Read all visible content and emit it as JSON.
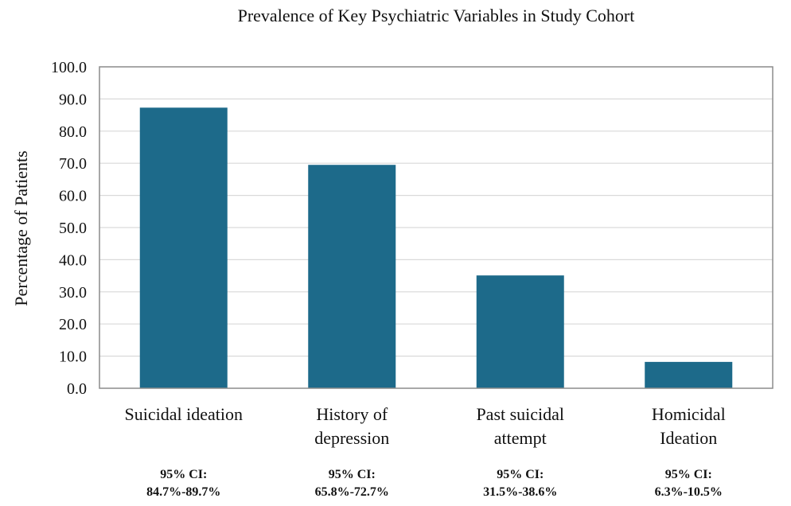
{
  "chart_data": {
    "type": "bar",
    "title": "Prevalence of Key Psychiatric Variables in Study Cohort",
    "xlabel": "",
    "ylabel": "Percentage of Patients",
    "ylim": [
      0,
      100
    ],
    "yticks": [
      "0.0",
      "10.0",
      "20.0",
      "30.0",
      "40.0",
      "50.0",
      "60.0",
      "70.0",
      "80.0",
      "90.0",
      "100.0"
    ],
    "grid": true,
    "categories": [
      [
        "Suicidal ideation"
      ],
      [
        "History of",
        "depression"
      ],
      [
        "Past suicidal",
        "attempt"
      ],
      [
        "Homicidal",
        "Ideation"
      ]
    ],
    "values": [
      87.3,
      69.5,
      35.1,
      8.2
    ],
    "annotations": [
      [
        "95% CI:",
        "84.7%-89.7%"
      ],
      [
        "95% CI:",
        "65.8%-72.7%"
      ],
      [
        "95% CI:",
        "31.5%-38.6%"
      ],
      [
        "95% CI:",
        "6.3%-10.5%"
      ]
    ],
    "colors": {
      "bar": "#1d6a8a",
      "grid": "#d9d9d9",
      "frame": "#8c8c8c"
    }
  }
}
